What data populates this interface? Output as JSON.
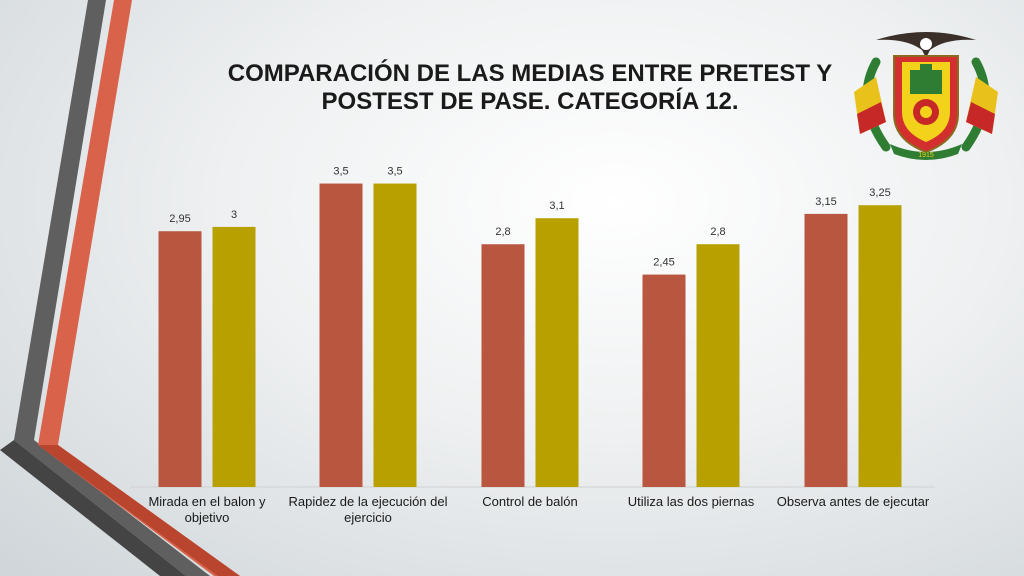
{
  "slide": {
    "title_line1": "COMPARACIÓN DE LAS MEDIAS ENTRE PRETEST Y",
    "title_line2": "POSTEST DE PASE. CATEGORÍA 12.",
    "emblem_text": "1915"
  },
  "colors": {
    "pretest": "#b9563f",
    "postest": "#b7a000",
    "stripe_dark": "#5a5a5a",
    "stripe_accent": "#d9634a"
  },
  "chart_data": {
    "type": "bar",
    "title": "COMPARACIÓN DE LAS MEDIAS ENTRE PRETEST Y POSTEST DE PASE. CATEGORÍA 12.",
    "categories": [
      [
        "Mirada en el balon y",
        "objetivo"
      ],
      [
        "Rapidez de la ejecución del",
        "ejercicio"
      ],
      [
        "Control de balón"
      ],
      [
        "Utiliza las dos piernas"
      ],
      [
        "Observa antes de ejecutar"
      ]
    ],
    "series": [
      {
        "values": [
          2.95,
          3.5,
          2.8,
          2.45,
          3.15
        ],
        "labels": [
          "2,95",
          "3,5",
          "2,8",
          "2,45",
          "3,15"
        ]
      },
      {
        "values": [
          3,
          3.5,
          3.1,
          2.8,
          3.25
        ],
        "labels": [
          "3",
          "3,5",
          "3,1",
          "2,8",
          "3,25"
        ]
      }
    ],
    "ylim": [
      0,
      4
    ],
    "grid": false,
    "legend": "none"
  }
}
